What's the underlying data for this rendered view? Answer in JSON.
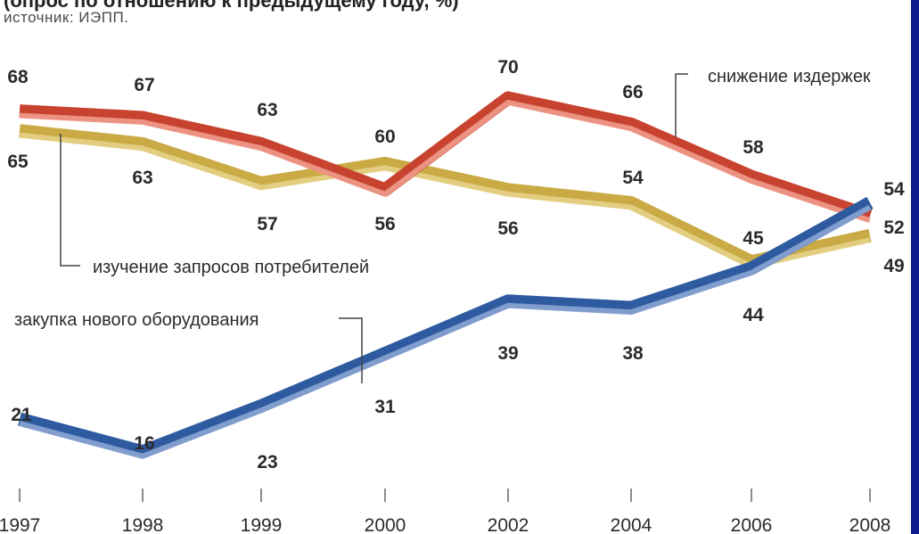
{
  "header": {
    "title_fragment": "(опрос по отношению к предыдущему году, %)",
    "source": "источник: ИЭПП."
  },
  "colors": {
    "red": "#c8432f",
    "red_light": "#f2a090",
    "gold": "#c9aa44",
    "gold_light": "#e6d38b",
    "blue": "#2e5ba0",
    "blue_light": "#8fa9d6",
    "frame": "#0b1a8c"
  },
  "chart_data": {
    "type": "line",
    "categories": [
      "1997",
      "1998",
      "1999",
      "2000",
      "2002",
      "2004",
      "2006",
      "2008"
    ],
    "series": [
      {
        "name": "снижение издержек",
        "values": [
          68,
          67,
          63,
          56,
          70,
          66,
          58,
          52
        ]
      },
      {
        "name": "изучение запросов потребителей",
        "values": [
          65,
          63,
          57,
          60,
          56,
          54,
          45,
          49
        ]
      },
      {
        "name": "закупка нового оборудования",
        "values": [
          21,
          16,
          23,
          31,
          39,
          38,
          44,
          54
        ]
      }
    ],
    "value_labels": [
      [
        "68",
        "67",
        "63",
        "56",
        "70",
        "66",
        "58",
        "52"
      ],
      [
        "65",
        "63",
        "57",
        "60",
        "56",
        "54",
        "45",
        "49"
      ],
      [
        "21",
        "16",
        "23",
        "31",
        "39",
        "38",
        "44",
        "54"
      ]
    ],
    "ylim": [
      10,
      75
    ],
    "grid": false,
    "legend": "inline-labels"
  }
}
